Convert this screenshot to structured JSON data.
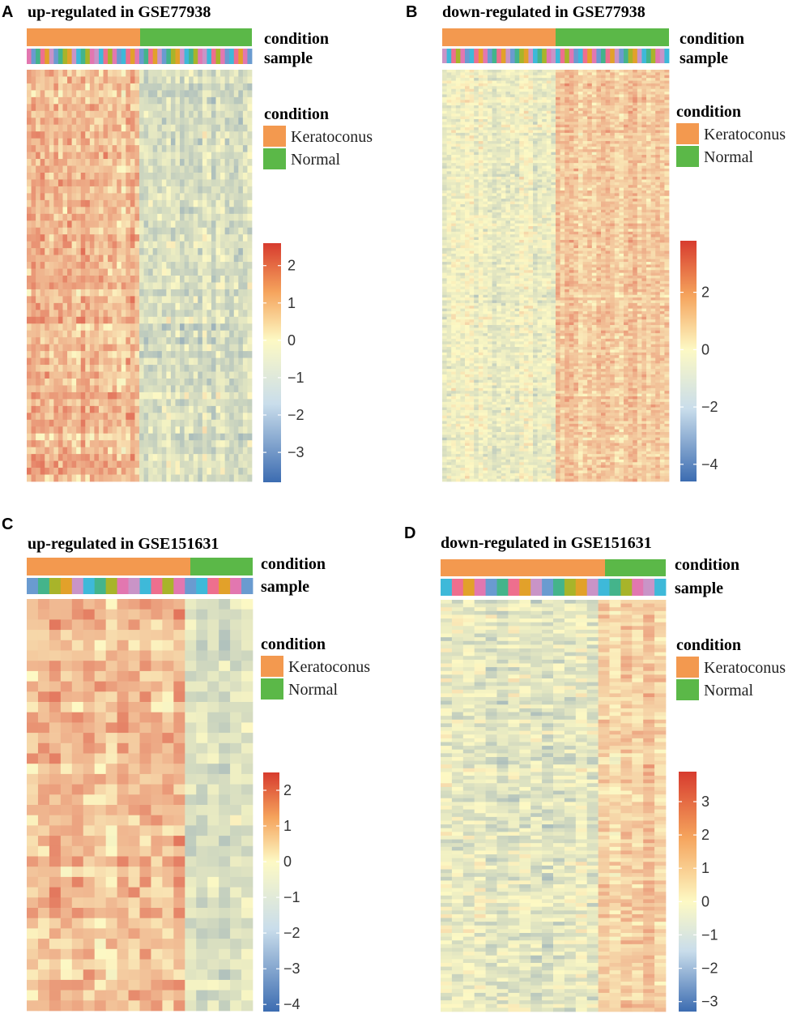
{
  "colors": {
    "keratoconus": "#F3994F",
    "normal": "#5BB848",
    "heat_low": "#3C6CB1",
    "heat_mid": "#FDF9C4",
    "heat_high": "#D73B2E"
  },
  "sample_palette": [
    "#E277B0",
    "#3EB9D9",
    "#A8B42A",
    "#C994C7",
    "#44B48B",
    "#E2A12A",
    "#6A9BD0",
    "#EE6F8E"
  ],
  "chart_data": [
    {
      "panel": "A",
      "type": "heatmap",
      "title": "up-regulated in GSE77938",
      "direction": "up",
      "n_samples": 50,
      "n_keratoconus": 25,
      "n_normal": 25,
      "n_genes": 60,
      "annotation_tracks": [
        "condition",
        "sample"
      ],
      "legend": {
        "title": "condition",
        "entries": [
          "Keratoconus",
          "Normal"
        ]
      },
      "colorbar": {
        "min": -3.8,
        "max": 2.6,
        "ticks": [
          2,
          1,
          0,
          -1,
          -2,
          -3
        ],
        "tick_labels": [
          "2",
          "1",
          "0",
          "−1",
          "−2",
          "−3"
        ]
      }
    },
    {
      "panel": "B",
      "type": "heatmap",
      "title": "down-regulated in GSE77938",
      "direction": "down",
      "n_samples": 50,
      "n_keratoconus": 25,
      "n_normal": 25,
      "n_genes": 150,
      "annotation_tracks": [
        "condition",
        "sample"
      ],
      "legend": {
        "title": "condition",
        "entries": [
          "Keratoconus",
          "Normal"
        ]
      },
      "colorbar": {
        "min": -4.6,
        "max": 3.8,
        "ticks": [
          2,
          0,
          -2,
          -4
        ],
        "tick_labels": [
          "2",
          "0",
          "−2",
          "−4"
        ]
      }
    },
    {
      "panel": "C",
      "type": "heatmap",
      "title": "up-regulated in GSE151631",
      "direction": "up",
      "n_samples": 20,
      "n_keratoconus": 14,
      "n_normal": 6,
      "n_genes": 40,
      "annotation_tracks": [
        "condition",
        "sample"
      ],
      "legend": {
        "title": "condition",
        "entries": [
          "Keratoconus",
          "Normal"
        ]
      },
      "colorbar": {
        "min": -4.2,
        "max": 2.5,
        "ticks": [
          2,
          1,
          0,
          -1,
          -2,
          -3,
          -4
        ],
        "tick_labels": [
          "2",
          "1",
          "0",
          "−1",
          "−2",
          "−3",
          "−4"
        ]
      }
    },
    {
      "panel": "D",
      "type": "heatmap",
      "title": "down-regulated in GSE151631",
      "direction": "down",
      "n_samples": 20,
      "n_keratoconus": 14,
      "n_normal": 6,
      "n_genes": 110,
      "annotation_tracks": [
        "condition",
        "sample"
      ],
      "legend": {
        "title": "condition",
        "entries": [
          "Keratoconus",
          "Normal"
        ]
      },
      "colorbar": {
        "min": -3.3,
        "max": 3.9,
        "ticks": [
          3,
          2,
          1,
          0,
          -1,
          -2,
          -3
        ],
        "tick_labels": [
          "3",
          "2",
          "1",
          "0",
          "−1",
          "−2",
          "−3"
        ]
      }
    }
  ]
}
